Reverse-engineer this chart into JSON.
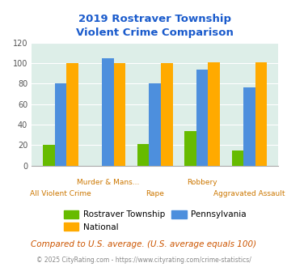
{
  "title": "2019 Rostraver Township\nViolent Crime Comparison",
  "categories": [
    "All Violent Crime",
    "Murder & Mans...",
    "Rape",
    "Robbery",
    "Aggravated Assault"
  ],
  "rostraver": [
    20,
    0,
    21,
    34,
    15
  ],
  "pennsylvania": [
    80,
    105,
    80,
    94,
    76
  ],
  "national": [
    100,
    100,
    100,
    101,
    101
  ],
  "color_rostraver": "#66bb00",
  "color_pennsylvania": "#4d8fdd",
  "color_national": "#ffaa00",
  "ylim": [
    0,
    120
  ],
  "yticks": [
    0,
    20,
    40,
    60,
    80,
    100,
    120
  ],
  "bar_width": 0.25,
  "background_color": "#ddeee8",
  "title_color": "#1a5bcc",
  "xlabel_color": "#cc7700",
  "footer_note": "Compared to U.S. average. (U.S. average equals 100)",
  "footer_credit": "© 2025 CityRating.com - https://www.cityrating.com/crime-statistics/",
  "row1_labels": [
    "All Violent Crime",
    "",
    "Rape",
    "",
    "Aggravated Assault"
  ],
  "row2_labels": [
    "",
    "Murder & Mans...",
    "",
    "Robbery",
    ""
  ]
}
